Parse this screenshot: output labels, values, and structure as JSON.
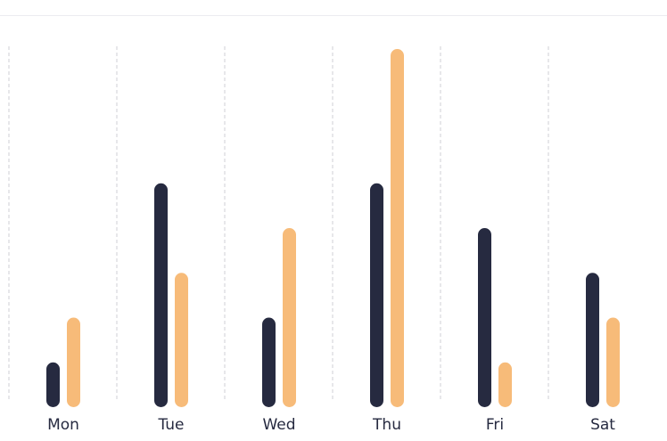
{
  "chart_data": {
    "type": "bar",
    "title": "",
    "xlabel": "",
    "ylabel": "",
    "grid": "vertical dashed separators between categories",
    "legend": "none",
    "categories": [
      "Mon",
      "Tue",
      "Wed",
      "Thu",
      "Fri",
      "Sat"
    ],
    "ylim": [
      0,
      8.2
    ],
    "series": [
      {
        "color": "#262a40",
        "values": [
          1,
          5,
          2,
          5,
          4,
          3
        ]
      },
      {
        "color": "#f7bb79",
        "values": [
          2,
          3,
          4,
          8,
          1,
          2
        ]
      }
    ]
  }
}
